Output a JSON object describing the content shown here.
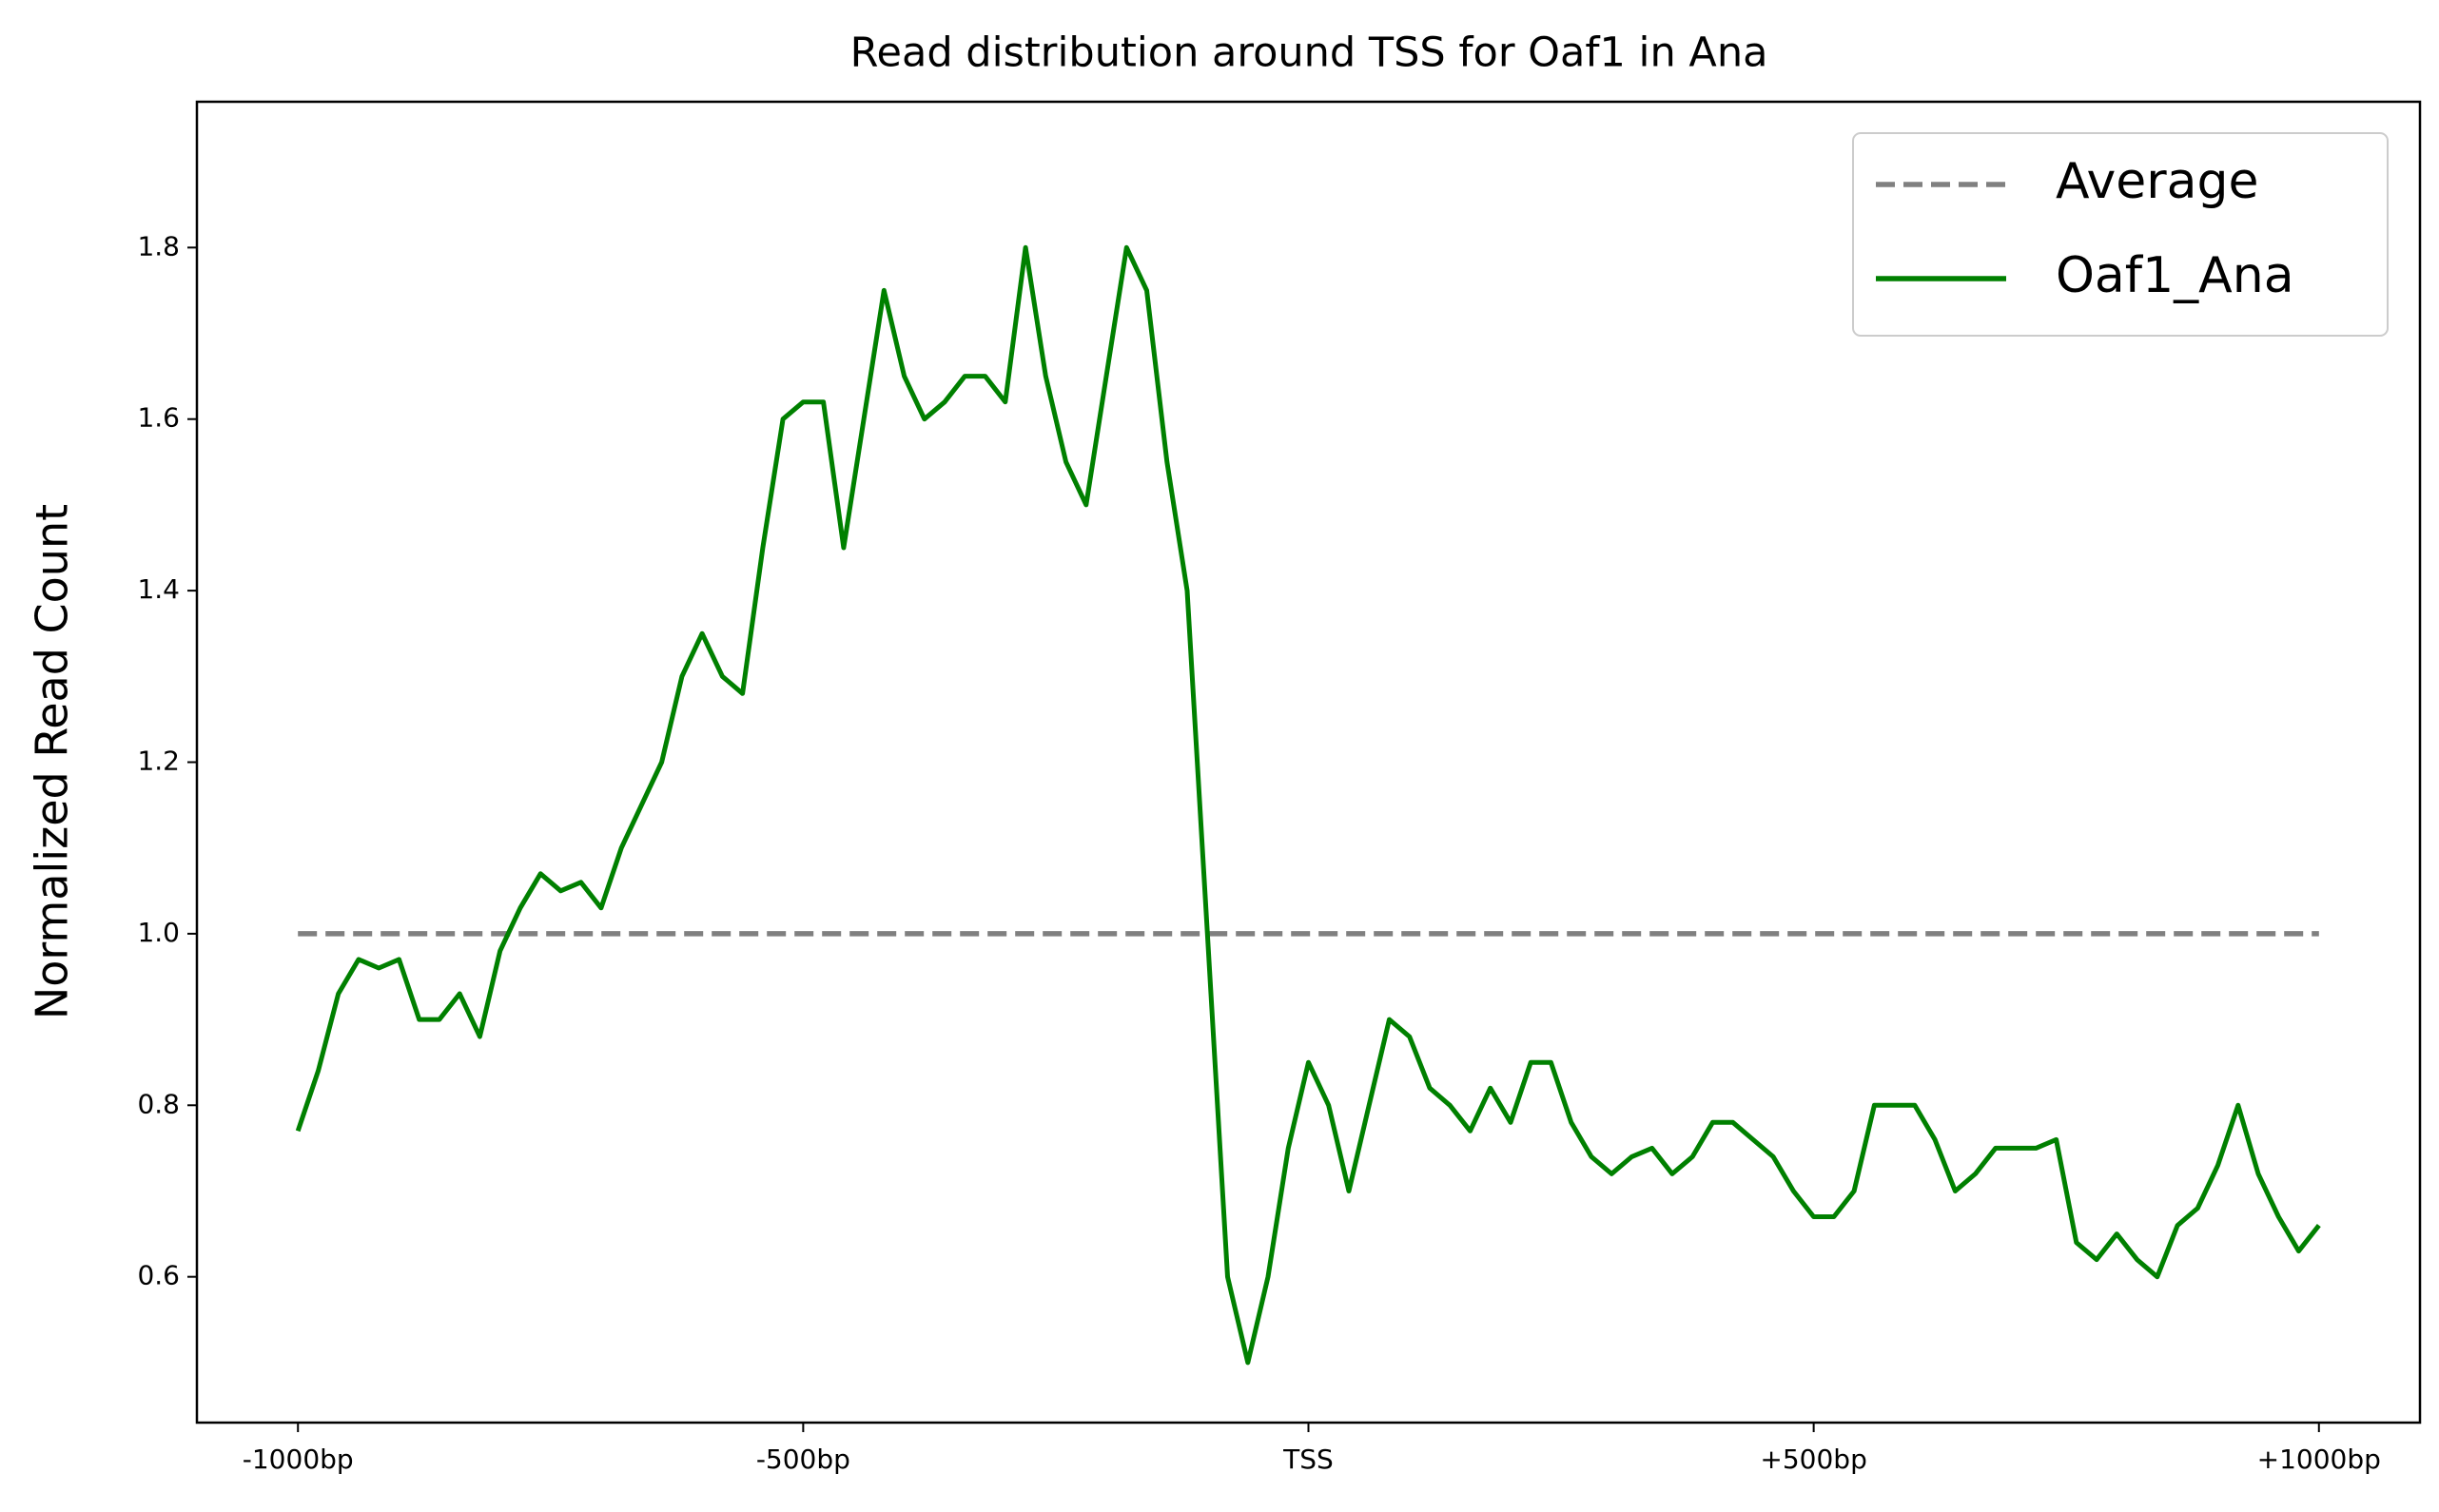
{
  "chart_data": {
    "type": "line",
    "title": "Read distribution around TSS for Oaf1 in Ana",
    "ylabel": "Normalized Read Count",
    "x": [
      -1000,
      -980,
      -960,
      -940,
      -920,
      -900,
      -880,
      -860,
      -840,
      -820,
      -800,
      -780,
      -760,
      -740,
      -720,
      -700,
      -680,
      -660,
      -640,
      -620,
      -600,
      -580,
      -560,
      -540,
      -520,
      -500,
      -480,
      -460,
      -440,
      -420,
      -400,
      -380,
      -360,
      -340,
      -320,
      -300,
      -280,
      -260,
      -240,
      -220,
      -200,
      -180,
      -160,
      -140,
      -120,
      -100,
      -80,
      -60,
      -40,
      -20,
      0,
      20,
      40,
      60,
      80,
      100,
      120,
      140,
      160,
      180,
      200,
      220,
      240,
      260,
      280,
      300,
      320,
      340,
      360,
      380,
      400,
      420,
      440,
      460,
      480,
      500,
      520,
      540,
      560,
      580,
      600,
      620,
      640,
      660,
      680,
      700,
      720,
      740,
      760,
      780,
      800,
      820,
      840,
      860,
      880,
      900,
      920,
      940,
      960,
      980,
      1000
    ],
    "series": [
      {
        "name": "Average",
        "color": "#808080",
        "dashed": true,
        "values": [
          1,
          1,
          1,
          1,
          1,
          1,
          1,
          1,
          1,
          1,
          1,
          1,
          1,
          1,
          1,
          1,
          1,
          1,
          1,
          1,
          1,
          1,
          1,
          1,
          1,
          1,
          1,
          1,
          1,
          1,
          1,
          1,
          1,
          1,
          1,
          1,
          1,
          1,
          1,
          1,
          1,
          1,
          1,
          1,
          1,
          1,
          1,
          1,
          1,
          1,
          1,
          1,
          1,
          1,
          1,
          1,
          1,
          1,
          1,
          1,
          1,
          1,
          1,
          1,
          1,
          1,
          1,
          1,
          1,
          1,
          1,
          1,
          1,
          1,
          1,
          1,
          1,
          1,
          1,
          1,
          1,
          1,
          1,
          1,
          1,
          1,
          1,
          1,
          1,
          1,
          1,
          1,
          1,
          1,
          1,
          1,
          1,
          1,
          1,
          1,
          1
        ]
      },
      {
        "name": "Oaf1_Ana",
        "color": "#008000",
        "dashed": false,
        "values": [
          0.77,
          0.84,
          0.93,
          0.97,
          0.96,
          0.97,
          0.9,
          0.9,
          0.93,
          0.88,
          0.98,
          1.03,
          1.07,
          1.05,
          1.06,
          1.03,
          1.1,
          1.15,
          1.2,
          1.3,
          1.35,
          1.3,
          1.28,
          1.45,
          1.6,
          1.62,
          1.62,
          1.45,
          1.6,
          1.75,
          1.65,
          1.6,
          1.62,
          1.65,
          1.65,
          1.62,
          1.8,
          1.65,
          1.55,
          1.5,
          1.65,
          1.8,
          1.75,
          1.55,
          1.4,
          1.0,
          0.6,
          0.5,
          0.6,
          0.75,
          0.85,
          0.8,
          0.7,
          0.8,
          0.9,
          0.88,
          0.82,
          0.8,
          0.77,
          0.82,
          0.78,
          0.85,
          0.85,
          0.78,
          0.74,
          0.72,
          0.74,
          0.75,
          0.72,
          0.74,
          0.78,
          0.78,
          0.76,
          0.74,
          0.7,
          0.67,
          0.67,
          0.7,
          0.8,
          0.8,
          0.8,
          0.76,
          0.7,
          0.72,
          0.75,
          0.75,
          0.75,
          0.76,
          0.64,
          0.62,
          0.65,
          0.62,
          0.6,
          0.66,
          0.68,
          0.73,
          0.8,
          0.72,
          0.67,
          0.63,
          0.66
        ]
      }
    ],
    "xlim": [
      -1100,
      1100
    ],
    "ylim": [
      0.43,
      1.97
    ],
    "xticks": [
      {
        "value": -1000,
        "label": "-1000bp"
      },
      {
        "value": -500,
        "label": "-500bp"
      },
      {
        "value": 0,
        "label": "TSS"
      },
      {
        "value": 500,
        "label": "+500bp"
      },
      {
        "value": 1000,
        "label": "+1000bp"
      }
    ],
    "yticks": [
      {
        "value": 0.6,
        "label": "0.6"
      },
      {
        "value": 0.8,
        "label": "0.8"
      },
      {
        "value": 1.0,
        "label": "1.0"
      },
      {
        "value": 1.2,
        "label": "1.2"
      },
      {
        "value": 1.4,
        "label": "1.4"
      },
      {
        "value": 1.6,
        "label": "1.6"
      },
      {
        "value": 1.8,
        "label": "1.8"
      }
    ],
    "legend": "upper right"
  }
}
